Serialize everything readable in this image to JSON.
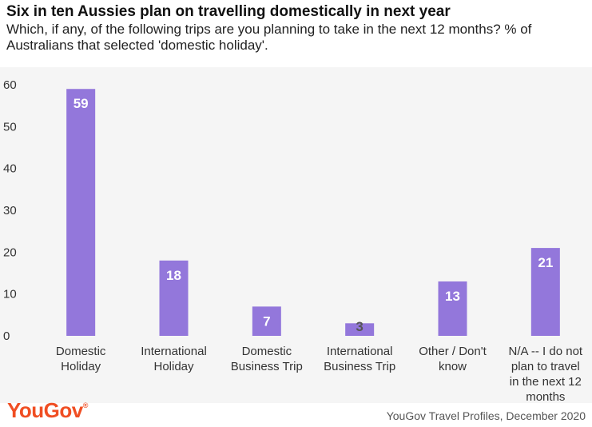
{
  "header": {
    "title": "Six in ten Aussies plan on travelling domestically in next year",
    "subtitle": "Which, if any, of the following trips are you planning to take in the next 12 months? % of Australians that selected 'domestic holiday'."
  },
  "footer": {
    "logo_text": "YouGov",
    "source": "YouGov Travel Profiles, December 2020"
  },
  "colors": {
    "bar": "#9377db",
    "label_inside": "#ffffff",
    "label_outside": "#555555",
    "logo": "#f04e23"
  },
  "chart_data": {
    "type": "bar",
    "title": "Six in ten Aussies plan on travelling domestically in next year",
    "xlabel": "",
    "ylabel": "",
    "ylim": [
      0,
      60
    ],
    "yticks": [
      0,
      10,
      20,
      30,
      40,
      50,
      60
    ],
    "grid": false,
    "categories": [
      [
        "Domestic",
        "Holiday"
      ],
      [
        "International",
        "Holiday"
      ],
      [
        "Domestic",
        "Business Trip"
      ],
      [
        "International",
        "Business Trip"
      ],
      [
        "Other / Don't",
        "know"
      ],
      [
        "N/A -- I do not",
        "plan to travel",
        "in the next 12",
        "months"
      ]
    ],
    "values": [
      59,
      18,
      7,
      3,
      13,
      21
    ]
  }
}
